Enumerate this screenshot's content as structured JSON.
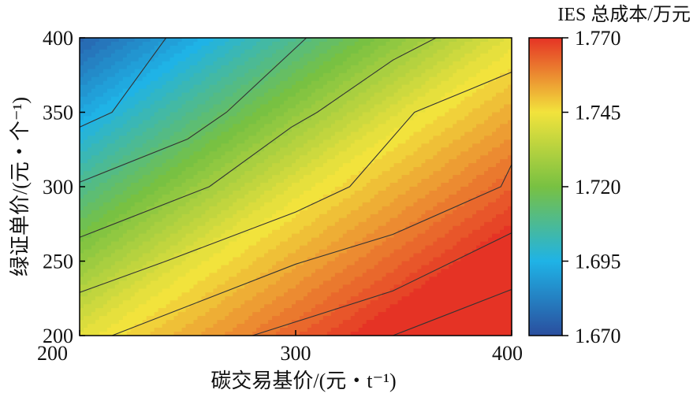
{
  "chart_data": {
    "type": "contour",
    "title": "",
    "xlabel": "碳交易基价/(元・t⁻¹)",
    "ylabel": "绿证单价/(元・个⁻¹)",
    "xlim": [
      200,
      400
    ],
    "ylim": [
      200,
      400
    ],
    "x_ticks": [
      "200",
      "300",
      "400"
    ],
    "y_ticks": [
      "200",
      "250",
      "300",
      "350",
      "400"
    ],
    "colorbar": {
      "title": "IES 总成本/万元",
      "range": [
        1.67,
        1.77
      ],
      "ticks": [
        "1.670",
        "1.695",
        "1.720",
        "1.745",
        "1.770"
      ],
      "colors": [
        "#2a4e9e",
        "#1fb3e6",
        "#78c142",
        "#f2e33c",
        "#e53325"
      ]
    },
    "contour_lines": [
      {
        "points": [
          [
            200,
            340
          ],
          [
            215,
            350
          ],
          [
            240,
            400
          ]
        ]
      },
      {
        "points": [
          [
            200,
            303
          ],
          [
            250,
            332
          ],
          [
            268,
            350
          ],
          [
            305,
            400
          ]
        ]
      },
      {
        "points": [
          [
            200,
            266
          ],
          [
            260,
            300
          ],
          [
            298,
            340
          ],
          [
            310,
            350
          ],
          [
            345,
            385
          ],
          [
            365,
            400
          ]
        ]
      },
      {
        "points": [
          [
            200,
            229
          ],
          [
            240,
            250
          ],
          [
            300,
            283
          ],
          [
            325,
            300
          ],
          [
            355,
            350
          ],
          [
            380,
            365
          ],
          [
            400,
            377
          ]
        ]
      },
      {
        "points": [
          [
            215,
            200
          ],
          [
            300,
            248
          ],
          [
            345,
            268
          ],
          [
            395,
            300
          ],
          [
            400,
            315
          ]
        ]
      },
      {
        "points": [
          [
            280,
            200
          ],
          [
            345,
            230
          ],
          [
            400,
            269
          ]
        ]
      },
      {
        "points": [
          [
            345,
            200
          ],
          [
            400,
            231
          ]
        ]
      }
    ]
  }
}
